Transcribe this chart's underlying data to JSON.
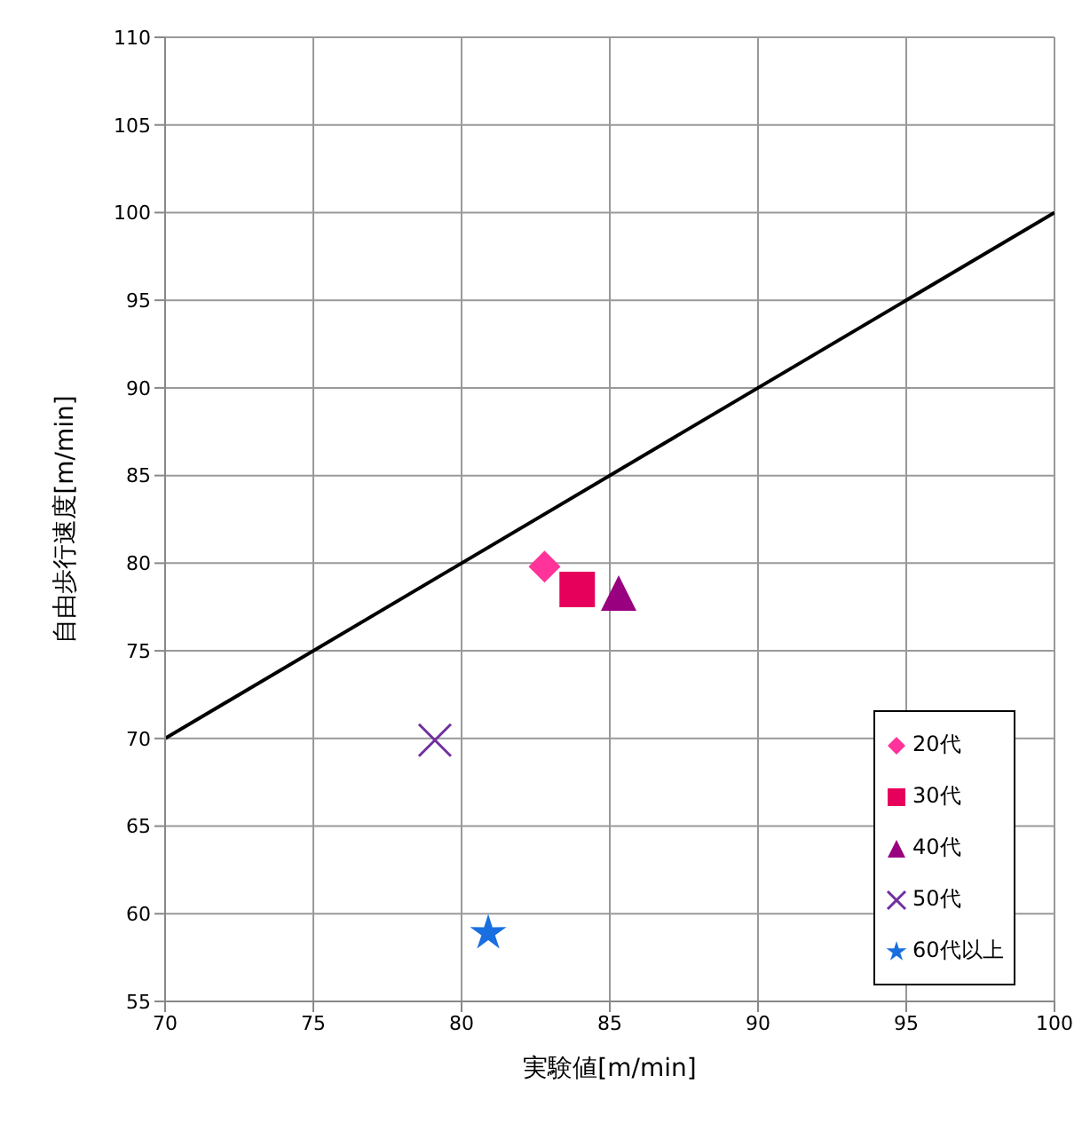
{
  "chart_data": {
    "type": "scatter",
    "xlabel": "実験値[m/min]",
    "ylabel": "自由歩行速度[m/min]",
    "xlim": [
      70,
      100
    ],
    "xticks": [
      70,
      75,
      80,
      85,
      90,
      95,
      100
    ],
    "ylim": [
      55,
      110
    ],
    "yticks": [
      55,
      60,
      65,
      70,
      75,
      80,
      85,
      90,
      95,
      100,
      105,
      110
    ],
    "grid": true,
    "legend": "bottom right",
    "series": [
      {
        "name": "20代",
        "color": "#ff3399",
        "marker": "diamond",
        "x": [
          82.8
        ],
        "values": [
          79.8
        ]
      },
      {
        "name": "30代",
        "color": "#e6005c",
        "marker": "square",
        "x": [
          83.9
        ],
        "values": [
          78.5
        ]
      },
      {
        "name": "40代",
        "color": "#990080",
        "marker": "triangle",
        "x": [
          85.3
        ],
        "values": [
          78.3
        ]
      },
      {
        "name": "50代",
        "color": "#7030a0",
        "marker": "cross",
        "x": [
          79.1
        ],
        "values": [
          69.9
        ]
      },
      {
        "name": "60代以上",
        "color": "#1a6fe0",
        "marker": "star",
        "x": [
          80.9
        ],
        "values": [
          58.9
        ]
      },
      {
        "type": "line",
        "color": "#000000",
        "marker": "none",
        "x": [
          70,
          100
        ],
        "values": [
          70,
          100
        ]
      }
    ]
  }
}
